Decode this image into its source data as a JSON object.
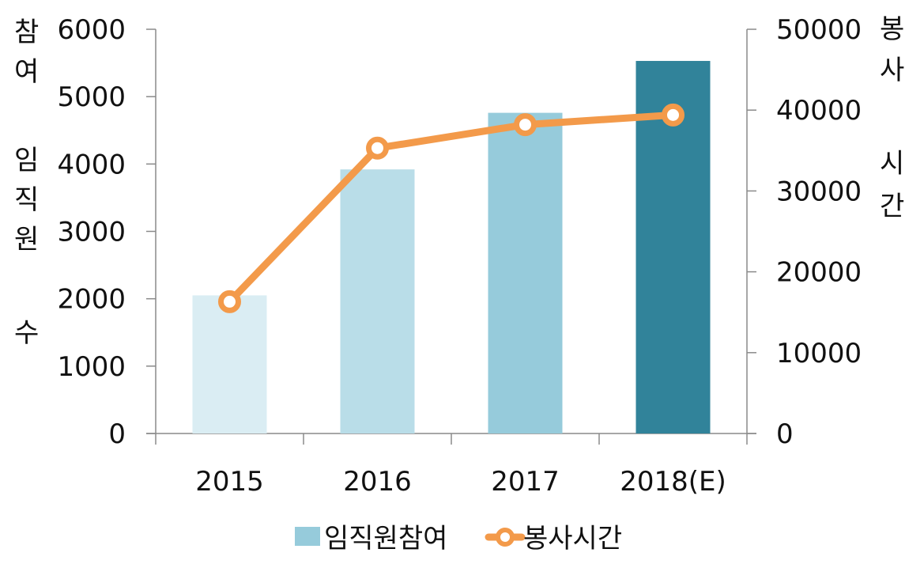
{
  "chart_data": {
    "type": "bar",
    "categories": [
      "2015",
      "2016",
      "2017",
      "2018(E)"
    ],
    "series": [
      {
        "name": "임직원참여",
        "type": "bar",
        "axis": "left",
        "values": [
          2050,
          3920,
          4760,
          5530
        ],
        "colors": [
          "#daedf3",
          "#b9dde8",
          "#96cbdb",
          "#31839a"
        ]
      },
      {
        "name": "봉사시간",
        "type": "line",
        "axis": "right",
        "values": [
          16300,
          35300,
          38200,
          39400
        ],
        "color": "#f39a4a"
      }
    ],
    "ylabel": [
      "참",
      "여",
      "임",
      "직",
      "원",
      "수"
    ],
    "y2label": [
      "봉",
      "사",
      "시",
      "간"
    ],
    "ylim": [
      0,
      6000
    ],
    "y2lim": [
      0,
      50000
    ],
    "yticks": [
      "0",
      "1000",
      "2000",
      "3000",
      "4000",
      "5000",
      "6000"
    ],
    "y2ticks": [
      "0",
      "10000",
      "20000",
      "30000",
      "40000",
      "50000"
    ],
    "legend": {
      "position": "bottom",
      "items": [
        "임직원참여",
        "봉사시간"
      ]
    },
    "grid": false
  }
}
